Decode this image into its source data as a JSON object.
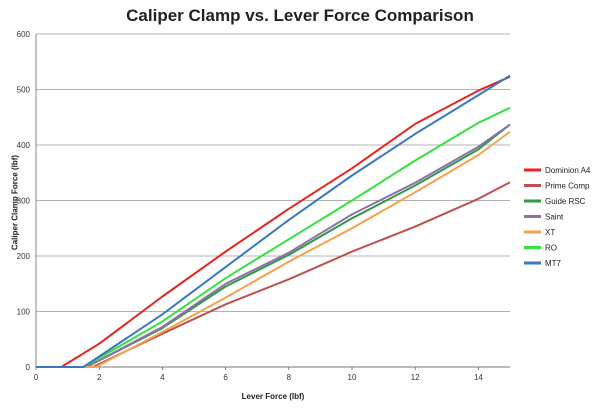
{
  "chart_data": {
    "type": "line",
    "title": "Caliper Clamp vs. Lever Force Comparison",
    "xlabel": "Lever Force (lbf)",
    "ylabel": "Caliper Clamp Force (lbf)",
    "xlim": [
      0,
      15
    ],
    "ylim": [
      0,
      600
    ],
    "x_ticks": [
      0,
      2,
      4,
      6,
      8,
      10,
      12,
      14
    ],
    "y_ticks": [
      0,
      100,
      200,
      300,
      400,
      500,
      600
    ],
    "grid": "horizontal",
    "legend_position": "right",
    "series": [
      {
        "name": "Dominion A4",
        "color": "#e8231e",
        "x": [
          0,
          0.8,
          2,
          4,
          6,
          8,
          10,
          12,
          14,
          15
        ],
        "y": [
          0,
          0,
          42,
          127,
          208,
          285,
          358,
          438,
          498,
          523
        ]
      },
      {
        "name": "Prime Comp",
        "color": "#c0504d",
        "x": [
          0,
          1.8,
          4,
          6,
          8,
          10,
          12,
          14,
          15
        ],
        "y": [
          0,
          0,
          60,
          113,
          158,
          208,
          253,
          303,
          333
        ]
      },
      {
        "name": "Guide RSC",
        "color": "#2e9a46",
        "x": [
          0,
          1.6,
          4,
          6,
          8,
          10,
          12,
          14,
          15
        ],
        "y": [
          0,
          0,
          70,
          145,
          202,
          268,
          327,
          392,
          437
        ]
      },
      {
        "name": "Saint",
        "color": "#8e72a6",
        "x": [
          0,
          1.6,
          4,
          6,
          8,
          10,
          12,
          14,
          15
        ],
        "y": [
          0,
          0,
          72,
          150,
          206,
          275,
          332,
          397,
          437
        ]
      },
      {
        "name": "XT",
        "color": "#f4a14e",
        "x": [
          0,
          1.9,
          4,
          6,
          8,
          10,
          12,
          14,
          15
        ],
        "y": [
          0,
          0,
          63,
          125,
          190,
          250,
          315,
          382,
          424
        ]
      },
      {
        "name": "RO",
        "color": "#33e23d",
        "x": [
          0,
          1.5,
          4,
          6,
          8,
          10,
          12,
          14,
          15
        ],
        "y": [
          0,
          0,
          82,
          160,
          230,
          300,
          372,
          440,
          467
        ]
      },
      {
        "name": "MT7",
        "color": "#3a78c2",
        "x": [
          0,
          1.5,
          4,
          6,
          8,
          10,
          12,
          14,
          15
        ],
        "y": [
          0,
          0,
          95,
          180,
          265,
          345,
          420,
          490,
          525
        ]
      }
    ]
  }
}
